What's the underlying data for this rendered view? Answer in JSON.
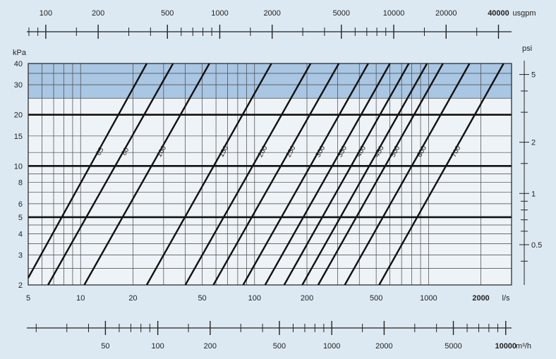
{
  "chart_data": {
    "type": "line",
    "title": "",
    "x_scale": "log",
    "y_scale": "log",
    "xlabel": "l/s",
    "ylabel": "kPa",
    "xlim": [
      5,
      3000
    ],
    "ylim": [
      2,
      40
    ],
    "x_ticks": [
      5,
      10,
      20,
      50,
      100,
      200,
      500,
      1000,
      2000
    ],
    "x_tick_labels": [
      "5",
      "10",
      "20",
      "50",
      "100",
      "200",
      "500",
      "1000",
      "2000"
    ],
    "y_ticks": [
      2,
      3,
      4,
      5,
      6,
      8,
      10,
      15,
      20,
      30,
      40
    ],
    "y_tick_labels": [
      "2",
      "3",
      "4",
      "5",
      "6",
      "8",
      "10",
      "15",
      "20",
      "30",
      "40"
    ],
    "y_heavy_lines": [
      5,
      10,
      20
    ],
    "shaded_band": {
      "y_from": 25,
      "y_to": 40,
      "color": "#a9c6e3"
    },
    "top_axis": {
      "unit_label": "usgpm",
      "ticks": [
        100,
        200,
        500,
        1000,
        2000,
        5000,
        10000,
        20000,
        40000
      ],
      "tick_labels": [
        "100",
        "200",
        "500",
        "1000",
        "2000",
        "5000",
        "10000",
        "20000",
        "40000"
      ],
      "bold_label": "40000"
    },
    "bottom_axis": {
      "unit_label": "m³/h",
      "ticks": [
        50,
        100,
        200,
        500,
        1000,
        2000,
        5000,
        10000
      ],
      "tick_labels": [
        "50",
        "100",
        "200",
        "500",
        "1000",
        "2000",
        "5000",
        "10000"
      ],
      "bold_label": "10000"
    },
    "right_axis": {
      "unit_label": "psi",
      "ticks": [
        0.5,
        1,
        2,
        5
      ],
      "tick_labels": [
        "0.5",
        "1",
        "2",
        "5"
      ]
    },
    "series": [
      {
        "name": "65",
        "points": [
          [
            5,
            2.2
          ],
          [
            24,
            40
          ]
        ]
      },
      {
        "name": "80",
        "points": [
          [
            6.5,
            2.0
          ],
          [
            34,
            40
          ]
        ]
      },
      {
        "name": "100",
        "points": [
          [
            10.5,
            2.0
          ],
          [
            55,
            40
          ]
        ]
      },
      {
        "name": "150",
        "points": [
          [
            24,
            2.0
          ],
          [
            125,
            40
          ]
        ]
      },
      {
        "name": "200",
        "points": [
          [
            40,
            2.0
          ],
          [
            210,
            40
          ]
        ]
      },
      {
        "name": "250",
        "points": [
          [
            58,
            2.0
          ],
          [
            305,
            40
          ]
        ]
      },
      {
        "name": "300",
        "points": [
          [
            86,
            2.0
          ],
          [
            450,
            40
          ]
        ]
      },
      {
        "name": "350",
        "points": [
          [
            115,
            2.0
          ],
          [
            600,
            40
          ]
        ]
      },
      {
        "name": "400",
        "points": [
          [
            148,
            2.0
          ],
          [
            770,
            40
          ]
        ]
      },
      {
        "name": "450",
        "points": [
          [
            188,
            2.0
          ],
          [
            980,
            40
          ]
        ]
      },
      {
        "name": "500",
        "points": [
          [
            232,
            2.0
          ],
          [
            1210,
            40
          ]
        ]
      },
      {
        "name": "600",
        "points": [
          [
            330,
            2.0
          ],
          [
            1720,
            40
          ]
        ]
      },
      {
        "name": "700",
        "points": [
          [
            520,
            2.0
          ],
          [
            2700,
            40
          ]
        ]
      }
    ],
    "grid": true,
    "legend": "none"
  }
}
